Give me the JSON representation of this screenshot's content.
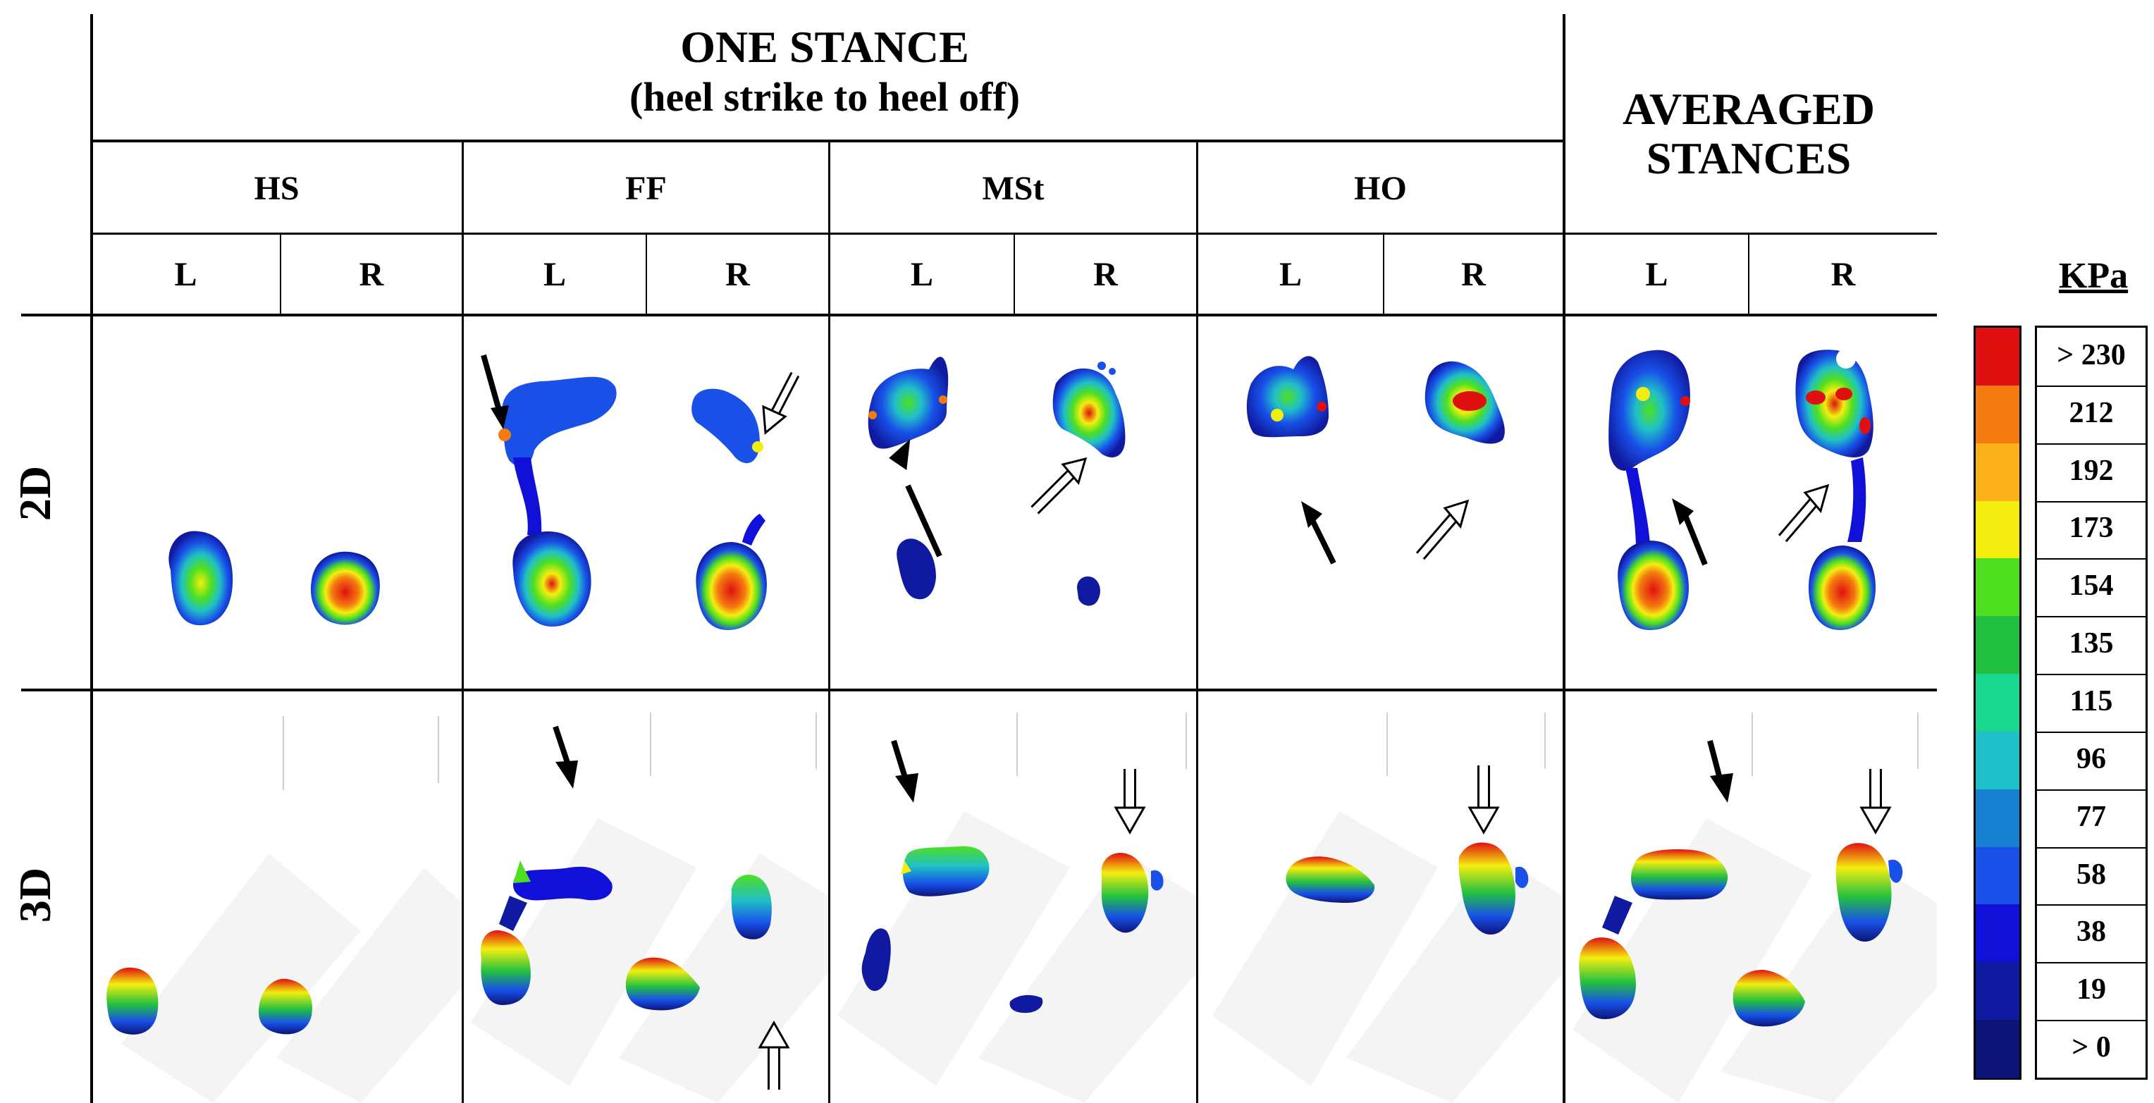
{
  "header": {
    "one_stance_title": "ONE STANCE",
    "one_stance_subtitle": "(heel strike to heel off)",
    "averaged_line1": "AVERAGED",
    "averaged_line2": "STANCES"
  },
  "phases": [
    {
      "key": "HS",
      "label": "HS"
    },
    {
      "key": "FF",
      "label": "FF"
    },
    {
      "key": "MSt",
      "label": "MSt"
    },
    {
      "key": "HO",
      "label": "HO"
    }
  ],
  "foot_labels": [
    "L",
    "R",
    "L",
    "R",
    "L",
    "R",
    "L",
    "R",
    "L",
    "R"
  ],
  "rows": {
    "row_2d": "2D",
    "row_3d": "3D"
  },
  "legend": {
    "unit": "KPa",
    "levels": [
      "> 230",
      "212",
      "192",
      "173",
      "154",
      "135",
      "115",
      "96",
      "77",
      "58",
      "38",
      "19",
      "> 0"
    ],
    "colors": [
      "#e01010",
      "#f57a10",
      "#fbb21a",
      "#f4ee10",
      "#4ee020",
      "#22c040",
      "#18d890",
      "#20c0c8",
      "#1880d0",
      "#1850e8",
      "#1010d8",
      "#101aa0",
      "#0c1478"
    ]
  },
  "colors": {
    "pressure_low": "#0c1478",
    "pressure_mid": "#22c040",
    "pressure_high": "#e01010"
  }
}
